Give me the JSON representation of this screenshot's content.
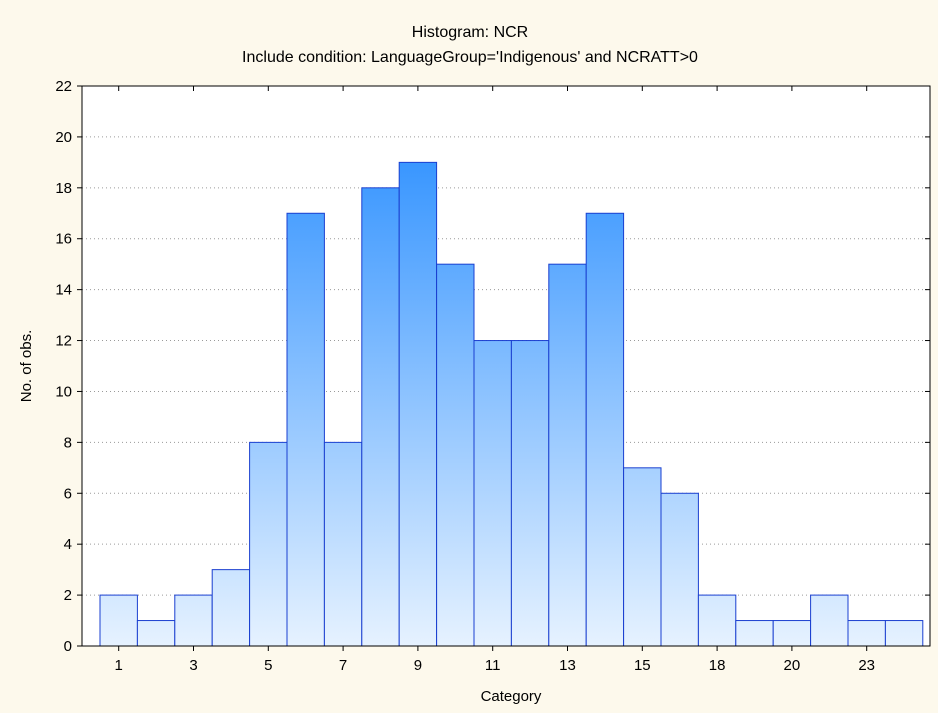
{
  "chart_data": {
    "type": "bar",
    "title": "Histogram: NCR",
    "subtitle": "Include condition: LanguageGroup='Indigenous' and NCRATT>0",
    "xlabel": "Category",
    "ylabel": "No. of obs.",
    "ylim": [
      0,
      22
    ],
    "yticks": [
      0,
      2,
      4,
      6,
      8,
      10,
      12,
      14,
      16,
      18,
      20,
      22
    ],
    "xtick_labels": [
      {
        "label": "1",
        "at_bar": 0
      },
      {
        "label": "3",
        "at_bar": 2
      },
      {
        "label": "5",
        "at_bar": 4
      },
      {
        "label": "7",
        "at_bar": 6
      },
      {
        "label": "9",
        "at_bar": 8
      },
      {
        "label": "11",
        "at_bar": 10
      },
      {
        "label": "13",
        "at_bar": 12
      },
      {
        "label": "15",
        "at_bar": 14
      },
      {
        "label": "18",
        "at_bar": 16
      },
      {
        "label": "20",
        "at_bar": 18
      },
      {
        "label": "23",
        "at_bar": 20
      }
    ],
    "values": [
      2,
      1,
      2,
      3,
      8,
      17,
      8,
      18,
      19,
      15,
      12,
      12,
      15,
      17,
      7,
      6,
      2,
      1,
      1,
      2,
      1,
      1
    ],
    "grid": true,
    "colors": {
      "bar_top": "#1e88ff",
      "bar_bottom": "#e6f2ff",
      "bar_stroke": "#1a3fd0",
      "background": "#fdf9ec",
      "plot_background": "#ffffff",
      "grid": "#9a9a9a"
    }
  }
}
